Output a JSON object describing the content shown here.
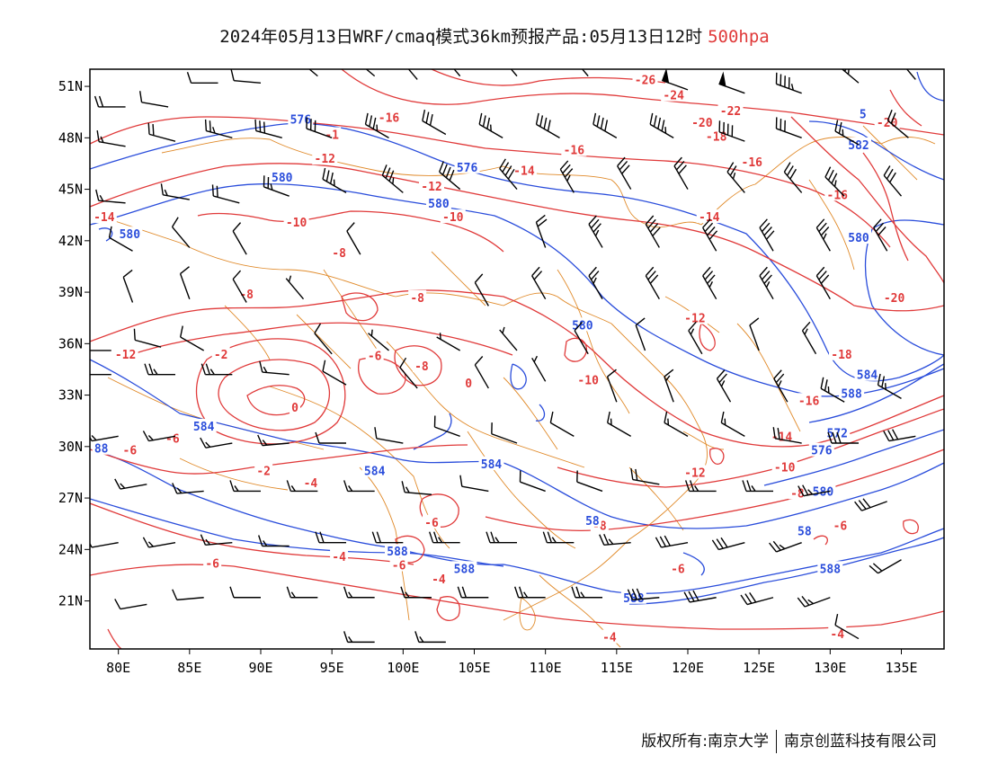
{
  "title": {
    "main": "2024年05月13日WRF/cmaq模式36km预报产品:05月13日12时",
    "level": "500hpa"
  },
  "axes": {
    "lat_labels": [
      "51N",
      "48N",
      "45N",
      "42N",
      "39N",
      "36N",
      "33N",
      "30N",
      "27N",
      "24N",
      "21N"
    ],
    "lat_values": [
      51,
      48,
      45,
      42,
      39,
      36,
      33,
      30,
      27,
      24,
      21
    ],
    "lon_labels": [
      "80E",
      "85E",
      "90E",
      "95E",
      "100E",
      "105E",
      "110E",
      "115E",
      "120E",
      "125E",
      "130E",
      "135E"
    ],
    "lon_values": [
      80,
      85,
      90,
      95,
      100,
      105,
      110,
      115,
      120,
      125,
      130,
      135
    ],
    "lon_range": [
      78,
      138
    ],
    "lat_range": [
      18.2,
      52
    ]
  },
  "colors": {
    "height_contour": "#2a4ddb",
    "temperature_contour": "#e03a3a",
    "borders": "#e08a2a",
    "wind_barbs": "#000000"
  },
  "temperature_labels": [
    {
      "text": "-26",
      "lon": 117,
      "lat": 51.4
    },
    {
      "text": "-24",
      "lon": 119,
      "lat": 50.5
    },
    {
      "text": "-22",
      "lon": 123,
      "lat": 49.6
    },
    {
      "text": "-20",
      "lon": 121,
      "lat": 48.9
    },
    {
      "text": "-20",
      "lon": 134,
      "lat": 48.9
    },
    {
      "text": "-18",
      "lon": 122,
      "lat": 48.1
    },
    {
      "text": "-16",
      "lon": 99,
      "lat": 49.2
    },
    {
      "text": "-1",
      "lon": 95,
      "lat": 48.2
    },
    {
      "text": "-16",
      "lon": 112,
      "lat": 47.3
    },
    {
      "text": "-16",
      "lon": 124.5,
      "lat": 46.6
    },
    {
      "text": "-14",
      "lon": 108.5,
      "lat": 46.1
    },
    {
      "text": "-12",
      "lon": 94.5,
      "lat": 46.8
    },
    {
      "text": "-12",
      "lon": 102,
      "lat": 45.2
    },
    {
      "text": "-10",
      "lon": 103.5,
      "lat": 43.4
    },
    {
      "text": "-10",
      "lon": 92.5,
      "lat": 43.1
    },
    {
      "text": "-14",
      "lon": 79,
      "lat": 43.4
    },
    {
      "text": "-14",
      "lon": 121.5,
      "lat": 43.4
    },
    {
      "text": "-16",
      "lon": 130.5,
      "lat": 44.7
    },
    {
      "text": "-8",
      "lon": 95.5,
      "lat": 41.3
    },
    {
      "text": "-8",
      "lon": 89,
      "lat": 38.9
    },
    {
      "text": "-8",
      "lon": 101,
      "lat": 38.7
    },
    {
      "text": "-12",
      "lon": 120.5,
      "lat": 37.5
    },
    {
      "text": "-20",
      "lon": 134.5,
      "lat": 38.7
    },
    {
      "text": "-12",
      "lon": 80.5,
      "lat": 35.4
    },
    {
      "text": "-2",
      "lon": 87.2,
      "lat": 35.4
    },
    {
      "text": "-6",
      "lon": 98,
      "lat": 35.3
    },
    {
      "text": "-8",
      "lon": 101.3,
      "lat": 34.7
    },
    {
      "text": "0",
      "lon": 104.6,
      "lat": 33.7
    },
    {
      "text": "-10",
      "lon": 113,
      "lat": 33.9
    },
    {
      "text": "-18",
      "lon": 130.8,
      "lat": 35.4
    },
    {
      "text": "-16",
      "lon": 128.5,
      "lat": 32.7
    },
    {
      "text": "0",
      "lon": 92.4,
      "lat": 32.3
    },
    {
      "text": "-14",
      "lon": 126.6,
      "lat": 30.6
    },
    {
      "text": "-6",
      "lon": 80.8,
      "lat": 29.8
    },
    {
      "text": "-6",
      "lon": 83.8,
      "lat": 30.5
    },
    {
      "text": "-2",
      "lon": 90.2,
      "lat": 28.6
    },
    {
      "text": "-4",
      "lon": 93.5,
      "lat": 27.9
    },
    {
      "text": "-12",
      "lon": 120.5,
      "lat": 28.5
    },
    {
      "text": "-10",
      "lon": 126.8,
      "lat": 28.8
    },
    {
      "text": "-8",
      "lon": 127.7,
      "lat": 27.3
    },
    {
      "text": "-6",
      "lon": 102,
      "lat": 25.6
    },
    {
      "text": "-8",
      "lon": 113.8,
      "lat": 25.4
    },
    {
      "text": "-6",
      "lon": 130.7,
      "lat": 25.4
    },
    {
      "text": "-4",
      "lon": 95.5,
      "lat": 23.6
    },
    {
      "text": "-6",
      "lon": 86.6,
      "lat": 23.2
    },
    {
      "text": "-6",
      "lon": 99.7,
      "lat": 23.1
    },
    {
      "text": "-6",
      "lon": 119.3,
      "lat": 22.9
    },
    {
      "text": "-4",
      "lon": 102.5,
      "lat": 22.3
    },
    {
      "text": "-4",
      "lon": 114.5,
      "lat": 18.9
    },
    {
      "text": "-4",
      "lon": 130.5,
      "lat": 19.1
    }
  ],
  "height_labels": [
    {
      "text": "576",
      "lon": 92.8,
      "lat": 49.1
    },
    {
      "text": "576",
      "lon": 104.5,
      "lat": 46.3
    },
    {
      "text": "580",
      "lon": 91.5,
      "lat": 45.7
    },
    {
      "text": "580",
      "lon": 102.5,
      "lat": 44.2
    },
    {
      "text": "580",
      "lon": 80.8,
      "lat": 42.4
    },
    {
      "text": "5",
      "lon": 132.3,
      "lat": 49.4
    },
    {
      "text": "582",
      "lon": 132,
      "lat": 47.6
    },
    {
      "text": "580",
      "lon": 132,
      "lat": 42.2
    },
    {
      "text": "580",
      "lon": 112.6,
      "lat": 37.1
    },
    {
      "text": "584",
      "lon": 132.6,
      "lat": 34.2
    },
    {
      "text": "588",
      "lon": 131.5,
      "lat": 33.1
    },
    {
      "text": "572",
      "lon": 130.5,
      "lat": 30.8
    },
    {
      "text": "576",
      "lon": 129.4,
      "lat": 29.8
    },
    {
      "text": "580",
      "lon": 129.5,
      "lat": 27.4
    },
    {
      "text": "584",
      "lon": 86,
      "lat": 31.2
    },
    {
      "text": "584",
      "lon": 98,
      "lat": 28.6
    },
    {
      "text": "584",
      "lon": 106.2,
      "lat": 29
    },
    {
      "text": "88",
      "lon": 78.8,
      "lat": 29.9
    },
    {
      "text": "58",
      "lon": 113.3,
      "lat": 25.7
    },
    {
      "text": "58",
      "lon": 128.2,
      "lat": 25.1
    },
    {
      "text": "588",
      "lon": 99.6,
      "lat": 23.9
    },
    {
      "text": "588",
      "lon": 104.3,
      "lat": 22.9
    },
    {
      "text": "588",
      "lon": 130,
      "lat": 22.9
    },
    {
      "text": "588",
      "lon": 116.2,
      "lat": 21.2
    }
  ],
  "wind_barbs": [
    {
      "lon": 80.5,
      "lat": 49.8,
      "dir": 270,
      "kt": 20
    },
    {
      "lon": 83.5,
      "lat": 49.8,
      "dir": 280,
      "kt": 10
    },
    {
      "lon": 87,
      "lat": 51.2,
      "dir": 270,
      "kt": 10
    },
    {
      "lon": 90,
      "lat": 51.2,
      "dir": 275,
      "kt": 10
    },
    {
      "lon": 94,
      "lat": 51.6,
      "dir": 310,
      "kt": 20
    },
    {
      "lon": 98,
      "lat": 51.6,
      "dir": 310,
      "kt": 20
    },
    {
      "lon": 101,
      "lat": 51.4,
      "dir": 320,
      "kt": 20
    },
    {
      "lon": 104,
      "lat": 51.6,
      "dir": 320,
      "kt": 25
    },
    {
      "lon": 108,
      "lat": 51.6,
      "dir": 320,
      "kt": 25
    },
    {
      "lon": 113,
      "lat": 51.6,
      "dir": 320,
      "kt": 30
    },
    {
      "lon": 120,
      "lat": 50.8,
      "dir": 290,
      "kt": 50
    },
    {
      "lon": 124,
      "lat": 50.6,
      "dir": 290,
      "kt": 50
    },
    {
      "lon": 128,
      "lat": 50.6,
      "dir": 290,
      "kt": 45
    },
    {
      "lon": 132,
      "lat": 51.2,
      "dir": 310,
      "kt": 35
    },
    {
      "lon": 136,
      "lat": 51.4,
      "dir": 320,
      "kt": 20
    },
    {
      "lon": 80.5,
      "lat": 47.5,
      "dir": 280,
      "kt": 15
    },
    {
      "lon": 84,
      "lat": 47.8,
      "dir": 285,
      "kt": 20
    },
    {
      "lon": 88,
      "lat": 48,
      "dir": 285,
      "kt": 25
    },
    {
      "lon": 91.5,
      "lat": 48,
      "dir": 285,
      "kt": 30
    },
    {
      "lon": 95,
      "lat": 48,
      "dir": 290,
      "kt": 30
    },
    {
      "lon": 99,
      "lat": 48,
      "dir": 300,
      "kt": 35
    },
    {
      "lon": 103,
      "lat": 48.2,
      "dir": 300,
      "kt": 30
    },
    {
      "lon": 107,
      "lat": 48,
      "dir": 300,
      "kt": 35
    },
    {
      "lon": 111,
      "lat": 48,
      "dir": 300,
      "kt": 40
    },
    {
      "lon": 115,
      "lat": 48,
      "dir": 300,
      "kt": 40
    },
    {
      "lon": 119,
      "lat": 48,
      "dir": 300,
      "kt": 45
    },
    {
      "lon": 124,
      "lat": 47.8,
      "dir": 290,
      "kt": 40
    },
    {
      "lon": 128,
      "lat": 48,
      "dir": 290,
      "kt": 30
    },
    {
      "lon": 132,
      "lat": 47.6,
      "dir": 300,
      "kt": 25
    },
    {
      "lon": 135.5,
      "lat": 48,
      "dir": 310,
      "kt": 20
    },
    {
      "lon": 80.5,
      "lat": 44.2,
      "dir": 275,
      "kt": 15
    },
    {
      "lon": 85,
      "lat": 44.4,
      "dir": 280,
      "kt": 15
    },
    {
      "lon": 88.5,
      "lat": 44.2,
      "dir": 285,
      "kt": 20
    },
    {
      "lon": 92,
      "lat": 44.6,
      "dir": 290,
      "kt": 25
    },
    {
      "lon": 96,
      "lat": 44.8,
      "dir": 300,
      "kt": 35
    },
    {
      "lon": 100,
      "lat": 44.8,
      "dir": 310,
      "kt": 35
    },
    {
      "lon": 104,
      "lat": 45,
      "dir": 310,
      "kt": 40
    },
    {
      "lon": 108,
      "lat": 45,
      "dir": 320,
      "kt": 40
    },
    {
      "lon": 112,
      "lat": 44.8,
      "dir": 330,
      "kt": 35
    },
    {
      "lon": 116,
      "lat": 45,
      "dir": 330,
      "kt": 30
    },
    {
      "lon": 120,
      "lat": 45,
      "dir": 330,
      "kt": 30
    },
    {
      "lon": 124,
      "lat": 44.8,
      "dir": 320,
      "kt": 25
    },
    {
      "lon": 128,
      "lat": 44.8,
      "dir": 320,
      "kt": 30
    },
    {
      "lon": 131,
      "lat": 44.6,
      "dir": 315,
      "kt": 35
    },
    {
      "lon": 135,
      "lat": 44.6,
      "dir": 320,
      "kt": 30
    },
    {
      "lon": 81,
      "lat": 41.4,
      "dir": 300,
      "kt": 10
    },
    {
      "lon": 85,
      "lat": 41.6,
      "dir": 320,
      "kt": 10
    },
    {
      "lon": 89,
      "lat": 41.2,
      "dir": 330,
      "kt": 10
    },
    {
      "lon": 97,
      "lat": 41.2,
      "dir": 330,
      "kt": 10
    },
    {
      "lon": 110,
      "lat": 41.6,
      "dir": 340,
      "kt": 20
    },
    {
      "lon": 114,
      "lat": 41.6,
      "dir": 330,
      "kt": 35
    },
    {
      "lon": 118,
      "lat": 41.6,
      "dir": 330,
      "kt": 40
    },
    {
      "lon": 122,
      "lat": 41.4,
      "dir": 330,
      "kt": 40
    },
    {
      "lon": 126,
      "lat": 41.4,
      "dir": 330,
      "kt": 40
    },
    {
      "lon": 130,
      "lat": 41.4,
      "dir": 330,
      "kt": 35
    },
    {
      "lon": 134,
      "lat": 41.4,
      "dir": 330,
      "kt": 30
    },
    {
      "lon": 81,
      "lat": 38.4,
      "dir": 340,
      "kt": 10
    },
    {
      "lon": 85,
      "lat": 38.6,
      "dir": 340,
      "kt": 10
    },
    {
      "lon": 89,
      "lat": 38.4,
      "dir": 330,
      "kt": 10
    },
    {
      "lon": 93,
      "lat": 38.6,
      "dir": 320,
      "kt": 5
    },
    {
      "lon": 106,
      "lat": 38.2,
      "dir": 330,
      "kt": 10
    },
    {
      "lon": 110,
      "lat": 38.6,
      "dir": 330,
      "kt": 20
    },
    {
      "lon": 114,
      "lat": 38.6,
      "dir": 330,
      "kt": 25
    },
    {
      "lon": 118,
      "lat": 38.6,
      "dir": 330,
      "kt": 30
    },
    {
      "lon": 122,
      "lat": 38.6,
      "dir": 330,
      "kt": 35
    },
    {
      "lon": 126,
      "lat": 38.6,
      "dir": 330,
      "kt": 35
    },
    {
      "lon": 130,
      "lat": 38.6,
      "dir": 330,
      "kt": 30
    },
    {
      "lon": 79.5,
      "lat": 35.6,
      "dir": 270,
      "kt": 10
    },
    {
      "lon": 83,
      "lat": 35.8,
      "dir": 285,
      "kt": 10
    },
    {
      "lon": 86,
      "lat": 35.6,
      "dir": 300,
      "kt": 10
    },
    {
      "lon": 95,
      "lat": 35.4,
      "dir": 320,
      "kt": 10
    },
    {
      "lon": 99,
      "lat": 35.6,
      "dir": 310,
      "kt": 5
    },
    {
      "lon": 104,
      "lat": 35.6,
      "dir": 300,
      "kt": 5
    },
    {
      "lon": 108,
      "lat": 35.6,
      "dir": 320,
      "kt": 5
    },
    {
      "lon": 113,
      "lat": 35.4,
      "dir": 330,
      "kt": 10
    },
    {
      "lon": 117,
      "lat": 35.6,
      "dir": 340,
      "kt": 10
    },
    {
      "lon": 121,
      "lat": 35.4,
      "dir": 330,
      "kt": 15
    },
    {
      "lon": 125,
      "lat": 35.6,
      "dir": 340,
      "kt": 10
    },
    {
      "lon": 129,
      "lat": 35.4,
      "dir": 330,
      "kt": 15
    },
    {
      "lon": 79.5,
      "lat": 34.2,
      "dir": 270,
      "kt": 20
    },
    {
      "lon": 84,
      "lat": 34.2,
      "dir": 270,
      "kt": 25
    },
    {
      "lon": 88,
      "lat": 34.2,
      "dir": 270,
      "kt": 25
    },
    {
      "lon": 92,
      "lat": 34.2,
      "dir": 275,
      "kt": 15
    },
    {
      "lon": 96,
      "lat": 33.6,
      "dir": 300,
      "kt": 10
    },
    {
      "lon": 101,
      "lat": 33.4,
      "dir": 320,
      "kt": 10
    },
    {
      "lon": 106,
      "lat": 33.4,
      "dir": 330,
      "kt": 10
    },
    {
      "lon": 110,
      "lat": 33.8,
      "dir": 330,
      "kt": 5
    },
    {
      "lon": 115,
      "lat": 32.6,
      "dir": 340,
      "kt": 10
    },
    {
      "lon": 119,
      "lat": 32.6,
      "dir": 340,
      "kt": 15
    },
    {
      "lon": 123,
      "lat": 32.6,
      "dir": 330,
      "kt": 25
    },
    {
      "lon": 127,
      "lat": 32.6,
      "dir": 330,
      "kt": 25
    },
    {
      "lon": 131,
      "lat": 32.6,
      "dir": 300,
      "kt": 25
    },
    {
      "lon": 135,
      "lat": 32.8,
      "dir": 300,
      "kt": 25
    },
    {
      "lon": 80,
      "lat": 30.6,
      "dir": 260,
      "kt": 15
    },
    {
      "lon": 84,
      "lat": 30.6,
      "dir": 260,
      "kt": 15
    },
    {
      "lon": 88,
      "lat": 30.2,
      "dir": 260,
      "kt": 15
    },
    {
      "lon": 92,
      "lat": 30.2,
      "dir": 265,
      "kt": 15
    },
    {
      "lon": 96,
      "lat": 30.2,
      "dir": 270,
      "kt": 10
    },
    {
      "lon": 100,
      "lat": 30.2,
      "dir": 280,
      "kt": 10
    },
    {
      "lon": 104,
      "lat": 30.6,
      "dir": 290,
      "kt": 10
    },
    {
      "lon": 108,
      "lat": 30.2,
      "dir": 290,
      "kt": 10
    },
    {
      "lon": 112,
      "lat": 30.6,
      "dir": 300,
      "kt": 10
    },
    {
      "lon": 116,
      "lat": 30.6,
      "dir": 300,
      "kt": 15
    },
    {
      "lon": 120,
      "lat": 30.6,
      "dir": 300,
      "kt": 15
    },
    {
      "lon": 124,
      "lat": 30.6,
      "dir": 300,
      "kt": 15
    },
    {
      "lon": 128,
      "lat": 30.2,
      "dir": 280,
      "kt": 20
    },
    {
      "lon": 132,
      "lat": 30.2,
      "dir": 270,
      "kt": 30
    },
    {
      "lon": 136,
      "lat": 30.6,
      "dir": 260,
      "kt": 30
    },
    {
      "lon": 82,
      "lat": 27.8,
      "dir": 260,
      "kt": 15
    },
    {
      "lon": 86,
      "lat": 27.4,
      "dir": 265,
      "kt": 15
    },
    {
      "lon": 90,
      "lat": 27.4,
      "dir": 270,
      "kt": 15
    },
    {
      "lon": 94,
      "lat": 27.4,
      "dir": 270,
      "kt": 15
    },
    {
      "lon": 98,
      "lat": 27.4,
      "dir": 270,
      "kt": 15
    },
    {
      "lon": 102,
      "lat": 27.2,
      "dir": 275,
      "kt": 15
    },
    {
      "lon": 106,
      "lat": 27.4,
      "dir": 280,
      "kt": 10
    },
    {
      "lon": 110,
      "lat": 27.4,
      "dir": 290,
      "kt": 10
    },
    {
      "lon": 114,
      "lat": 27.4,
      "dir": 290,
      "kt": 10
    },
    {
      "lon": 118,
      "lat": 27.8,
      "dir": 280,
      "kt": 20
    },
    {
      "lon": 122,
      "lat": 27.4,
      "dir": 270,
      "kt": 25
    },
    {
      "lon": 126,
      "lat": 27.4,
      "dir": 270,
      "kt": 25
    },
    {
      "lon": 130,
      "lat": 27.4,
      "dir": 260,
      "kt": 25
    },
    {
      "lon": 134,
      "lat": 26.8,
      "dir": 250,
      "kt": 30
    },
    {
      "lon": 80,
      "lat": 24.4,
      "dir": 260,
      "kt": 10
    },
    {
      "lon": 84,
      "lat": 24.4,
      "dir": 260,
      "kt": 15
    },
    {
      "lon": 88,
      "lat": 24.4,
      "dir": 265,
      "kt": 15
    },
    {
      "lon": 92,
      "lat": 24.2,
      "dir": 270,
      "kt": 15
    },
    {
      "lon": 96,
      "lat": 24.4,
      "dir": 270,
      "kt": 20
    },
    {
      "lon": 100,
      "lat": 24.4,
      "dir": 270,
      "kt": 20
    },
    {
      "lon": 104,
      "lat": 24.4,
      "dir": 270,
      "kt": 25
    },
    {
      "lon": 108,
      "lat": 24.4,
      "dir": 270,
      "kt": 25
    },
    {
      "lon": 112,
      "lat": 24.4,
      "dir": 270,
      "kt": 25
    },
    {
      "lon": 116,
      "lat": 24.4,
      "dir": 265,
      "kt": 25
    },
    {
      "lon": 120,
      "lat": 24.4,
      "dir": 260,
      "kt": 30
    },
    {
      "lon": 124,
      "lat": 24.4,
      "dir": 255,
      "kt": 30
    },
    {
      "lon": 128,
      "lat": 24.4,
      "dir": 250,
      "kt": 25
    },
    {
      "lon": 135,
      "lat": 23.4,
      "dir": 240,
      "kt": 20
    },
    {
      "lon": 82,
      "lat": 20.8,
      "dir": 260,
      "kt": 10
    },
    {
      "lon": 86,
      "lat": 21.2,
      "dir": 265,
      "kt": 10
    },
    {
      "lon": 90,
      "lat": 21.2,
      "dir": 270,
      "kt": 10
    },
    {
      "lon": 94,
      "lat": 21.2,
      "dir": 270,
      "kt": 15
    },
    {
      "lon": 98,
      "lat": 21.2,
      "dir": 270,
      "kt": 15
    },
    {
      "lon": 102,
      "lat": 21.2,
      "dir": 270,
      "kt": 15
    },
    {
      "lon": 106,
      "lat": 21.2,
      "dir": 270,
      "kt": 20
    },
    {
      "lon": 110,
      "lat": 21.2,
      "dir": 270,
      "kt": 25
    },
    {
      "lon": 114,
      "lat": 21.2,
      "dir": 270,
      "kt": 25
    },
    {
      "lon": 118,
      "lat": 21.2,
      "dir": 265,
      "kt": 30
    },
    {
      "lon": 122,
      "lat": 21.2,
      "dir": 260,
      "kt": 30
    },
    {
      "lon": 126,
      "lat": 21.2,
      "dir": 255,
      "kt": 30
    },
    {
      "lon": 130,
      "lat": 21.2,
      "dir": 250,
      "kt": 25
    },
    {
      "lon": 98,
      "lat": 18.6,
      "dir": 270,
      "kt": 15
    },
    {
      "lon": 103,
      "lat": 18.6,
      "dir": 270,
      "kt": 15
    },
    {
      "lon": 132,
      "lat": 18.8,
      "dir": 300,
      "kt": 10
    }
  ],
  "footer": {
    "copyright": "版权所有:南京大学",
    "company": "南京创蓝科技有限公司"
  }
}
